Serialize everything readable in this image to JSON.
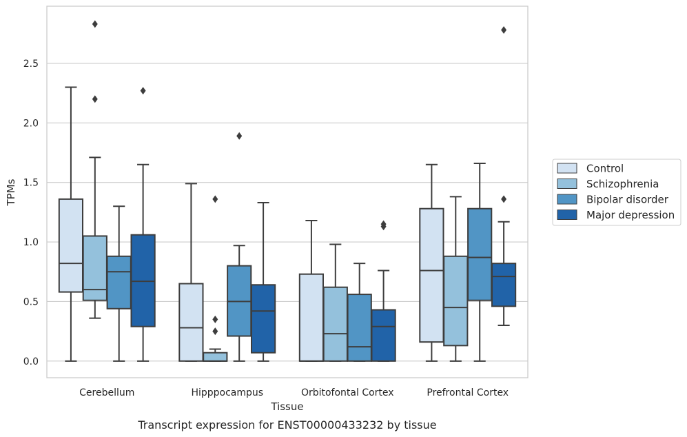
{
  "caption": "Transcript expression for ENST00000433232 by tissue",
  "chart_data": {
    "type": "box",
    "xlabel": "Tissue",
    "ylabel": "TPMs",
    "ylim": [
      -0.14,
      2.98
    ],
    "yticks": [
      "0.0",
      "0.5",
      "1.0",
      "1.5",
      "2.0",
      "2.5"
    ],
    "grid": "horizontal",
    "legend_position": "right",
    "categories": [
      "Cerebellum",
      "Hipppocampus",
      "Orbitofontal Cortex",
      "Prefrontal Cortex"
    ],
    "series": [
      {
        "name": "Control",
        "color": "#d2e2f2",
        "boxes": [
          {
            "whisker_low": 0.0,
            "q1": 0.58,
            "median": 0.82,
            "q3": 1.36,
            "whisker_high": 2.3,
            "outliers": []
          },
          {
            "whisker_low": 0.0,
            "q1": 0.0,
            "median": 0.28,
            "q3": 0.65,
            "whisker_high": 1.49,
            "outliers": []
          },
          {
            "whisker_low": 0.0,
            "q1": 0.0,
            "median": 0.0,
            "q3": 0.73,
            "whisker_high": 1.18,
            "outliers": []
          },
          {
            "whisker_low": 0.0,
            "q1": 0.16,
            "median": 0.76,
            "q3": 1.28,
            "whisker_high": 1.65,
            "outliers": []
          }
        ]
      },
      {
        "name": "Schizophrenia",
        "color": "#94c1dc",
        "boxes": [
          {
            "whisker_low": 0.36,
            "q1": 0.51,
            "median": 0.6,
            "q3": 1.05,
            "whisker_high": 1.71,
            "outliers": [
              2.2,
              2.83
            ]
          },
          {
            "whisker_low": 0.0,
            "q1": 0.0,
            "median": 0.0,
            "q3": 0.07,
            "whisker_high": 0.1,
            "outliers": [
              0.25,
              0.35,
              1.36
            ]
          },
          {
            "whisker_low": 0.0,
            "q1": 0.0,
            "median": 0.23,
            "q3": 0.62,
            "whisker_high": 0.98,
            "outliers": []
          },
          {
            "whisker_low": 0.0,
            "q1": 0.13,
            "median": 0.45,
            "q3": 0.88,
            "whisker_high": 1.38,
            "outliers": []
          }
        ]
      },
      {
        "name": "Bipolar disorder",
        "color": "#5195c5",
        "boxes": [
          {
            "whisker_low": 0.0,
            "q1": 0.44,
            "median": 0.75,
            "q3": 0.88,
            "whisker_high": 1.3,
            "outliers": []
          },
          {
            "whisker_low": 0.0,
            "q1": 0.21,
            "median": 0.5,
            "q3": 0.8,
            "whisker_high": 0.97,
            "outliers": [
              1.89
            ]
          },
          {
            "whisker_low": 0.0,
            "q1": 0.0,
            "median": 0.12,
            "q3": 0.56,
            "whisker_high": 0.82,
            "outliers": []
          },
          {
            "whisker_low": 0.0,
            "q1": 0.51,
            "median": 0.87,
            "q3": 1.28,
            "whisker_high": 1.66,
            "outliers": []
          }
        ]
      },
      {
        "name": "Major depression",
        "color": "#2163a8",
        "boxes": [
          {
            "whisker_low": 0.0,
            "q1": 0.29,
            "median": 0.67,
            "q3": 1.06,
            "whisker_high": 1.65,
            "outliers": [
              2.27
            ]
          },
          {
            "whisker_low": 0.0,
            "q1": 0.07,
            "median": 0.42,
            "q3": 0.64,
            "whisker_high": 1.33,
            "outliers": []
          },
          {
            "whisker_low": 0.0,
            "q1": 0.0,
            "median": 0.29,
            "q3": 0.43,
            "whisker_high": 0.76,
            "outliers": [
              1.13,
              1.15
            ]
          },
          {
            "whisker_low": 0.3,
            "q1": 0.46,
            "median": 0.71,
            "q3": 0.82,
            "whisker_high": 1.17,
            "outliers": [
              1.36,
              2.78
            ]
          }
        ]
      }
    ]
  }
}
